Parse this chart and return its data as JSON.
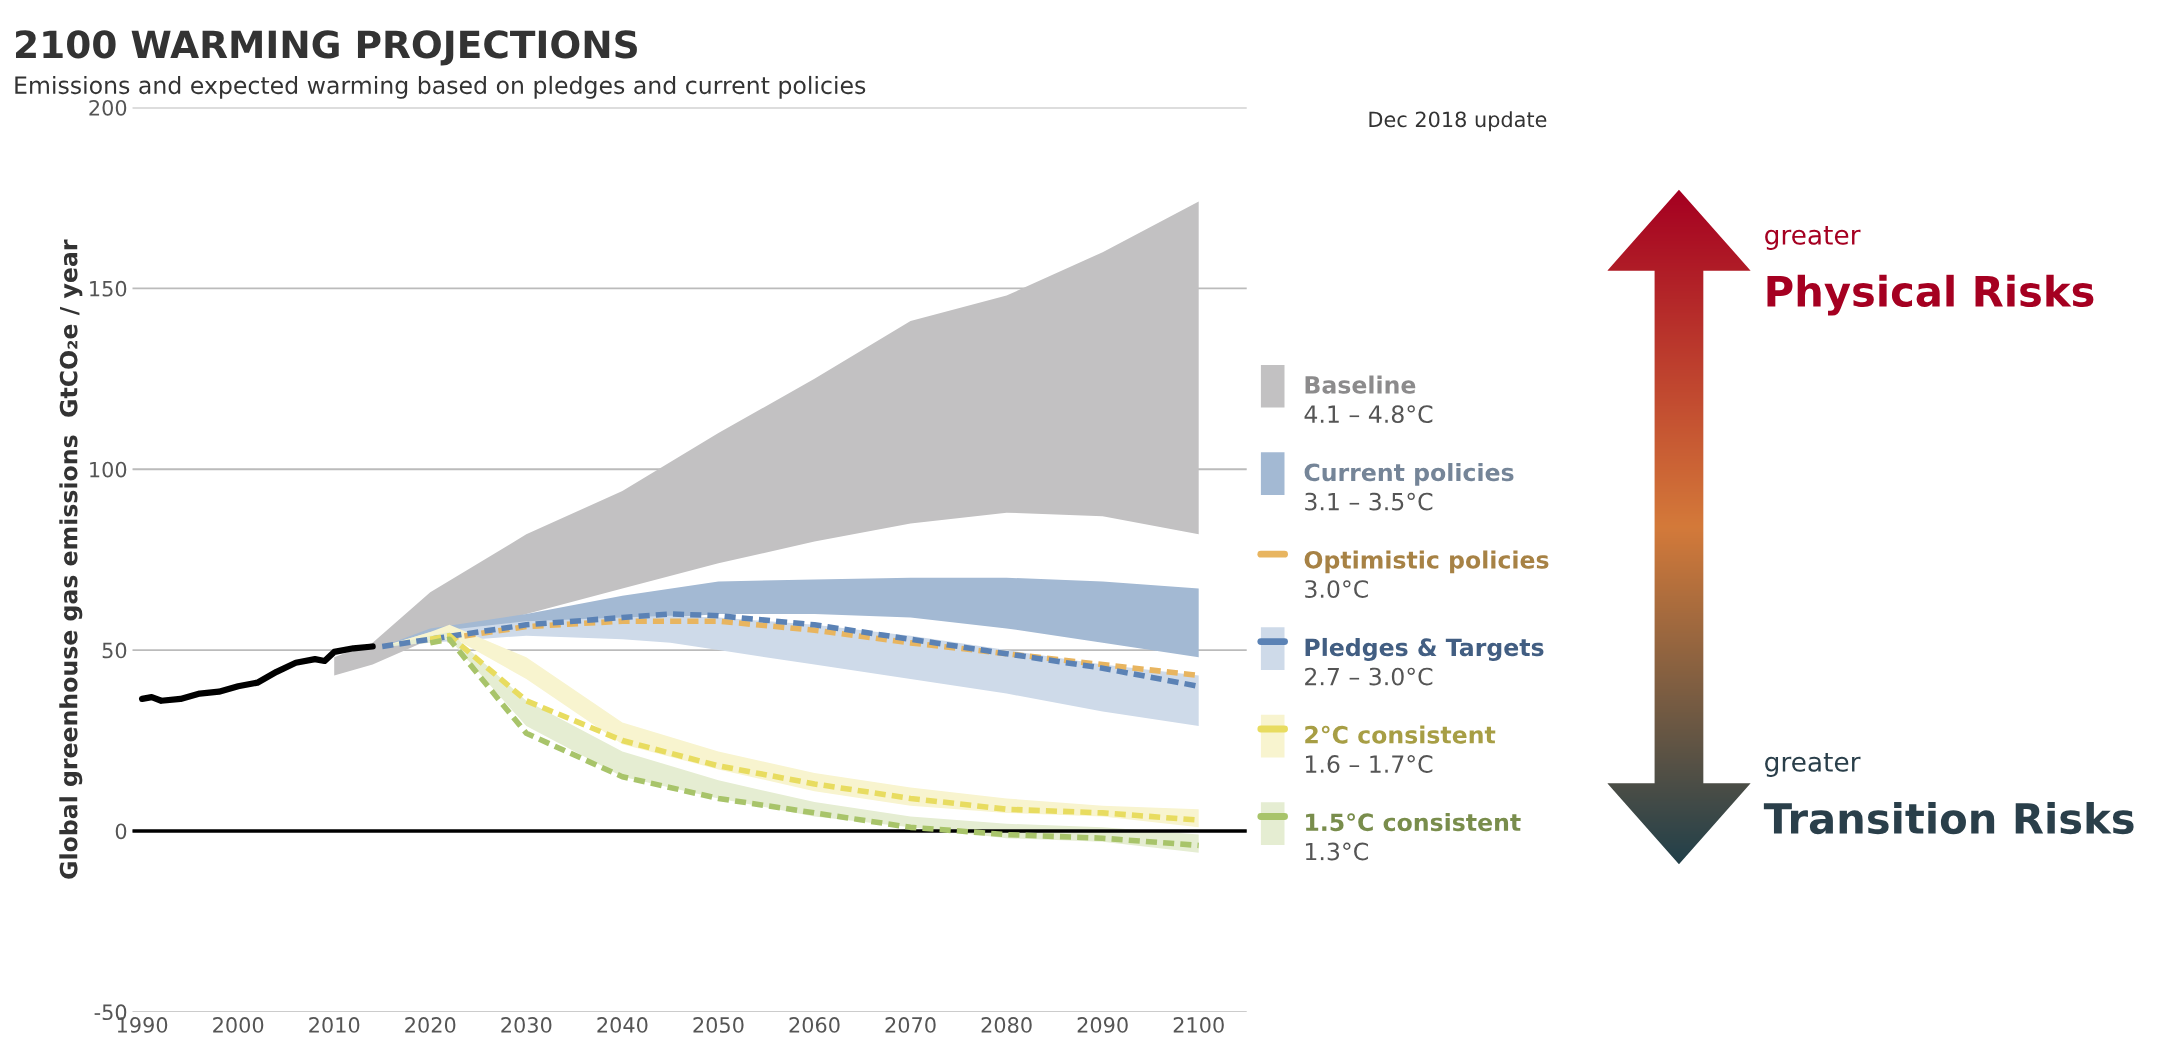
{
  "chart_data": {
    "type": "line",
    "title": "2100 WARMING PROJECTIONS",
    "subtitle": "Emissions and expected warming based on pledges and current policies",
    "ylabel": "Global greenhouse gas emissions  GtCO₂e / year",
    "xlim": [
      1989,
      2105
    ],
    "ylim": [
      -50,
      200
    ],
    "xticks": [
      1990,
      2000,
      2010,
      2020,
      2030,
      2040,
      2050,
      2060,
      2070,
      2080,
      2090,
      2100
    ],
    "yticks": [
      -50,
      0,
      50,
      100,
      150,
      200
    ],
    "grid": "y",
    "legend": "right",
    "ref_lines": [
      {
        "axis": "y",
        "value": 0,
        "color": "#000000"
      }
    ],
    "series": [
      {
        "type": "area",
        "name": "Baseline",
        "color": "#c2c1c2",
        "x": [
          2010,
          2014,
          2020,
          2030,
          2040,
          2050,
          2060,
          2070,
          2080,
          2090,
          2100
        ],
        "values": [
          null,
          null,
          null,
          null,
          null,
          null,
          null,
          null,
          null,
          null,
          null
        ],
        "lower": [
          43,
          46,
          53,
          60,
          67,
          74,
          80,
          85,
          88,
          87,
          82
        ],
        "upper": [
          48,
          52,
          66,
          82,
          94,
          110,
          125,
          141,
          148,
          160,
          174
        ]
      },
      {
        "type": "area",
        "name": "Current policies",
        "color": "#a3b9d3",
        "x": [
          2015,
          2020,
          2030,
          2040,
          2050,
          2060,
          2070,
          2080,
          2090,
          2100
        ],
        "values": [
          null,
          null,
          null,
          null,
          null,
          null,
          null,
          null,
          null,
          null
        ],
        "lower": [
          51,
          53,
          56,
          58,
          60,
          60,
          59,
          56,
          52,
          48
        ],
        "upper": [
          51,
          56,
          60,
          65,
          69,
          69.5,
          70,
          70,
          69,
          67
        ]
      },
      {
        "name": "Optimistic policies",
        "color": "#e8b560",
        "line_style": "dashed",
        "x": [
          2020,
          2030,
          2040,
          2050,
          2060,
          2070,
          2080,
          2090,
          2100
        ],
        "values": [
          52.5,
          56.5,
          58,
          58,
          55.5,
          52,
          49,
          46,
          43
        ]
      },
      {
        "name": "Pledges & Targets",
        "color": "#5b82b5",
        "line_style": "dashed",
        "x": [
          2015,
          2020,
          2030,
          2040,
          2045,
          2050,
          2060,
          2070,
          2080,
          2090,
          2100
        ],
        "values": [
          51,
          53,
          57,
          59,
          60,
          59.5,
          57,
          53,
          49,
          45,
          40
        ],
        "lower": [
          51,
          52,
          54,
          53,
          52,
          50,
          46,
          42,
          38,
          33,
          29
        ],
        "upper": [
          51,
          55,
          58,
          59,
          59.5,
          59,
          57,
          54,
          50,
          46,
          43
        ]
      },
      {
        "name": "2°C consistent",
        "color": "#e8dc60",
        "line_style": "dashed",
        "x": [
          2015,
          2020,
          2022,
          2030,
          2040,
          2050,
          2060,
          2070,
          2080,
          2090,
          2100
        ],
        "values": [
          null,
          53,
          54,
          36,
          25,
          18,
          13,
          9,
          6,
          5,
          3
        ],
        "lower": [
          51,
          52,
          54,
          42,
          24,
          17,
          11,
          7,
          5,
          4,
          1
        ],
        "upper": [
          51,
          55,
          57,
          48,
          30,
          22,
          16,
          12,
          9,
          7,
          6
        ]
      },
      {
        "name": "1.5°C consistent",
        "color": "#a8c46a",
        "line_style": "dashed",
        "x": [
          2015,
          2020,
          2022,
          2030,
          2040,
          2050,
          2060,
          2070,
          2080,
          2090,
          2100
        ],
        "values": [
          null,
          52,
          53,
          27,
          15,
          9,
          5,
          1,
          -1,
          -2,
          -4
        ],
        "lower": [
          51,
          52,
          53,
          29,
          15,
          9,
          4,
          1,
          -2,
          -3,
          -6
        ],
        "upper": [
          51,
          54,
          55,
          36,
          22,
          14,
          8,
          4,
          2,
          1,
          -1
        ]
      },
      {
        "color": "#000000",
        "line_style": "solid",
        "x": [
          1990,
          1991,
          1992,
          1994,
          1996,
          1998,
          2000,
          2002,
          2004,
          2006,
          2008,
          2009,
          2010,
          2012,
          2014
        ],
        "values": [
          36.5,
          37,
          36,
          36.5,
          38,
          38.5,
          40,
          41,
          44,
          46.5,
          47.5,
          47,
          49.5,
          50.5,
          51
        ]
      }
    ],
    "annotations": [
      "4.1 – 4.8°C",
      "3.1 – 3.5°C",
      "3.0°C",
      "2.7 – 3.0°C",
      "1.6 – 1.7°C",
      "1.3°C",
      "Dec 2018 update",
      "greater",
      "Physical Risks",
      "greater",
      "Transition Risks"
    ]
  }
}
